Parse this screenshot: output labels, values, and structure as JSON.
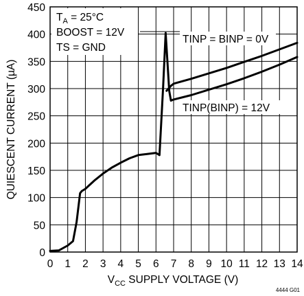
{
  "chart_data": {
    "type": "line",
    "xlabel": {
      "pre": "V",
      "sub": "CC",
      "post": " SUPPLY VOLTAGE (V)"
    },
    "ylabel": "QUIESCENT CURRENT (µA)",
    "xlim": [
      0,
      14
    ],
    "ylim": [
      0,
      450
    ],
    "xticks": [
      "0",
      "1",
      "2",
      "3",
      "4",
      "5",
      "6",
      "7",
      "8",
      "9",
      "10",
      "11",
      "12",
      "13",
      "14"
    ],
    "yticks": [
      "0",
      "50",
      "100",
      "150",
      "200",
      "250",
      "300",
      "350",
      "400",
      "450"
    ],
    "grid": true,
    "conditions": {
      "line1_pre": "T",
      "line1_sub": "A",
      "line1_post": " = 25°C",
      "line2": "BOOST = 12V",
      "line3": "TS = GND"
    },
    "figure_id": "4444 G01",
    "series": [
      {
        "name": "TINP = BINP = 0V",
        "x": [
          6.6,
          6.85,
          7,
          8,
          9,
          10,
          11,
          12,
          13,
          14
        ],
        "y": [
          296,
          305,
          309,
          318,
          328,
          338,
          349,
          360,
          372,
          384
        ]
      },
      {
        "name": "TINP(BINP) = 12V",
        "x": [
          0,
          0.5,
          1,
          1.3,
          1.5,
          1.7,
          1.8,
          2,
          2.5,
          3,
          3.5,
          4,
          4.5,
          5,
          5.5,
          6,
          6.2,
          6.4,
          6.55,
          6.75,
          6.85,
          7,
          8,
          9,
          10,
          11,
          12,
          13,
          14
        ],
        "y": [
          2,
          3,
          12,
          20,
          55,
          108,
          112,
          116,
          131,
          144,
          155,
          164,
          172,
          178,
          180,
          182,
          178,
          300,
          402,
          296,
          278,
          280,
          288,
          298,
          308,
          319,
          331,
          344,
          358
        ]
      }
    ]
  }
}
